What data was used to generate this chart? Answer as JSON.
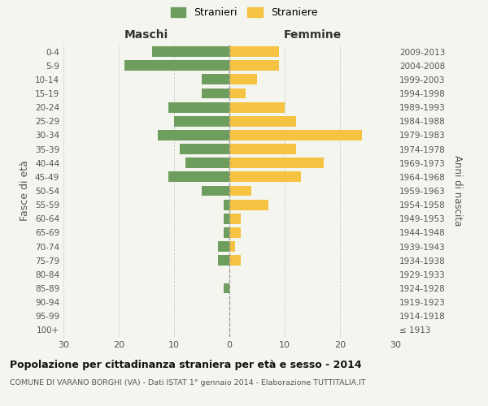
{
  "age_groups": [
    "100+",
    "95-99",
    "90-94",
    "85-89",
    "80-84",
    "75-79",
    "70-74",
    "65-69",
    "60-64",
    "55-59",
    "50-54",
    "45-49",
    "40-44",
    "35-39",
    "30-34",
    "25-29",
    "20-24",
    "15-19",
    "10-14",
    "5-9",
    "0-4"
  ],
  "birth_years": [
    "≤ 1913",
    "1914-1918",
    "1919-1923",
    "1924-1928",
    "1929-1933",
    "1934-1938",
    "1939-1943",
    "1944-1948",
    "1949-1953",
    "1954-1958",
    "1959-1963",
    "1964-1968",
    "1969-1973",
    "1974-1978",
    "1979-1983",
    "1984-1988",
    "1989-1993",
    "1994-1998",
    "1999-2003",
    "2004-2008",
    "2009-2013"
  ],
  "males": [
    0,
    0,
    0,
    1,
    0,
    2,
    2,
    1,
    1,
    1,
    5,
    11,
    8,
    9,
    13,
    10,
    11,
    5,
    5,
    19,
    14
  ],
  "females": [
    0,
    0,
    0,
    0,
    0,
    2,
    1,
    2,
    2,
    7,
    4,
    13,
    17,
    12,
    24,
    12,
    10,
    3,
    5,
    9,
    9
  ],
  "male_color": "#6d9e5e",
  "female_color": "#f5c242",
  "bg_color": "#f5f5f0",
  "grid_color": "#cccccc",
  "bar_height": 0.75,
  "xlim": 30,
  "title": "Popolazione per cittadinanza straniera per età e sesso - 2014",
  "subtitle": "COMUNE DI VARANO BORGHI (VA) - Dati ISTAT 1° gennaio 2014 - Elaborazione TUTTITALIA.IT",
  "ylabel_left": "Fasce di età",
  "ylabel_right": "Anni di nascita",
  "legend_male": "Stranieri",
  "legend_female": "Straniere",
  "header_male": "Maschi",
  "header_female": "Femmine"
}
